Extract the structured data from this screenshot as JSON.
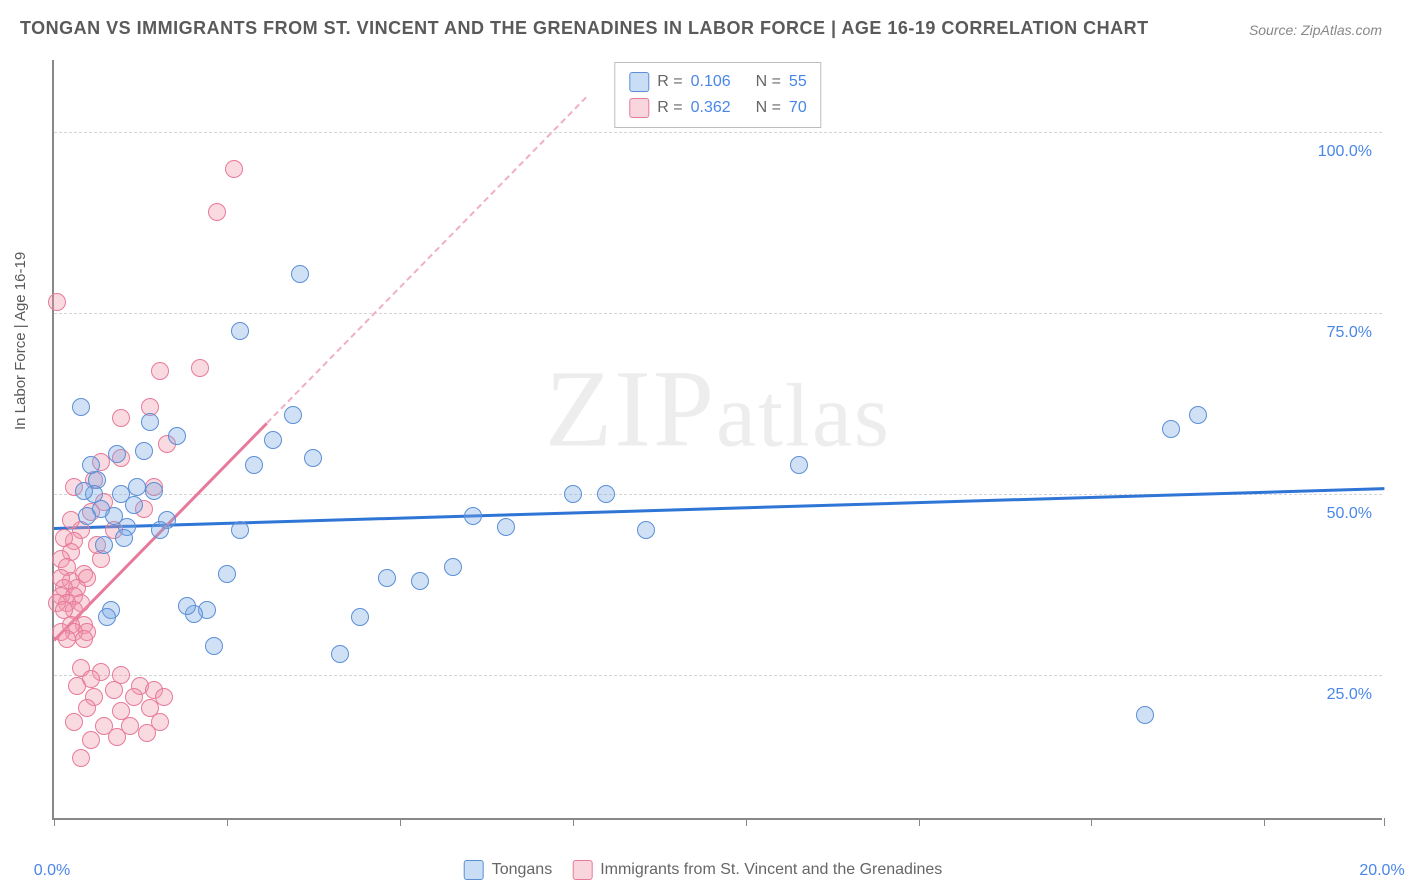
{
  "title": "TONGAN VS IMMIGRANTS FROM ST. VINCENT AND THE GRENADINES IN LABOR FORCE | AGE 16-19 CORRELATION CHART",
  "source": "Source: ZipAtlas.com",
  "watermark": "ZIPatlas",
  "chart": {
    "type": "scatter",
    "background_color": "#ffffff",
    "grid_color": "#d5d5d5",
    "axis_color": "#888888",
    "ylabel": "In Labor Force | Age 16-19",
    "ylabel_fontsize": 15,
    "xlim": [
      0,
      20
    ],
    "ylim": [
      5,
      110
    ],
    "x_tick_positions": [
      0,
      2.6,
      5.2,
      7.8,
      10.4,
      13.0,
      15.6,
      18.2,
      20
    ],
    "x_tick_labels": {
      "0": "0.0%",
      "20": "20.0%"
    },
    "y_gridlines": [
      25,
      50,
      75,
      100
    ],
    "y_tick_labels": {
      "25": "25.0%",
      "50": "50.0%",
      "75": "75.0%",
      "100": "100.0%"
    },
    "tick_label_color": "#4a86e8",
    "tick_label_fontsize": 16,
    "series": [
      {
        "name": "Tongans",
        "legend_label": "Tongans",
        "marker_fill": "rgba(120,170,230,0.35)",
        "marker_stroke": "#5b8fd6",
        "marker_size": 18,
        "r_value": "0.106",
        "n_value": "55",
        "trend": {
          "x1": 0,
          "y1": 45.5,
          "x2": 20,
          "y2": 51.0,
          "color": "#2e75d6",
          "width": 3
        },
        "points": [
          [
            3.7,
            80.5
          ],
          [
            2.8,
            72.5
          ],
          [
            16.8,
            59.0
          ],
          [
            17.2,
            61.0
          ],
          [
            16.4,
            19.5
          ],
          [
            11.2,
            54.0
          ],
          [
            8.3,
            50.0
          ],
          [
            8.9,
            45.0
          ],
          [
            7.8,
            50.0
          ],
          [
            6.8,
            45.5
          ],
          [
            6.3,
            47.0
          ],
          [
            6.0,
            40.0
          ],
          [
            5.5,
            38.0
          ],
          [
            5.0,
            38.5
          ],
          [
            4.6,
            33.0
          ],
          [
            4.3,
            28.0
          ],
          [
            3.9,
            55.0
          ],
          [
            3.6,
            61.0
          ],
          [
            3.3,
            57.5
          ],
          [
            3.0,
            54.0
          ],
          [
            2.8,
            45.0
          ],
          [
            2.6,
            39.0
          ],
          [
            2.4,
            29.0
          ],
          [
            2.3,
            34.0
          ],
          [
            2.1,
            33.5
          ],
          [
            2.0,
            34.5
          ],
          [
            1.85,
            58.0
          ],
          [
            1.7,
            46.5
          ],
          [
            1.6,
            45.0
          ],
          [
            1.5,
            50.5
          ],
          [
            1.45,
            60.0
          ],
          [
            1.35,
            56.0
          ],
          [
            1.25,
            51.0
          ],
          [
            1.2,
            48.5
          ],
          [
            1.1,
            45.5
          ],
          [
            1.05,
            44.0
          ],
          [
            1.0,
            50.0
          ],
          [
            0.95,
            55.5
          ],
          [
            0.9,
            47.0
          ],
          [
            0.85,
            34.0
          ],
          [
            0.8,
            33.0
          ],
          [
            0.75,
            43.0
          ],
          [
            0.7,
            48.0
          ],
          [
            0.65,
            52.0
          ],
          [
            0.6,
            50.0
          ],
          [
            0.55,
            54.0
          ],
          [
            0.5,
            47.0
          ],
          [
            0.45,
            50.5
          ],
          [
            0.4,
            62.0
          ]
        ]
      },
      {
        "name": "Immigrants from St. Vincent and the Grenadines",
        "legend_label": "Immigrants from St. Vincent and the Grenadines",
        "marker_fill": "rgba(240,150,170,0.35)",
        "marker_stroke": "#e77a9a",
        "marker_size": 18,
        "r_value": "0.362",
        "n_value": "70",
        "trend": {
          "x1": 0,
          "y1": 30.0,
          "x2": 3.2,
          "y2": 60.0,
          "color": "#e77a9a",
          "width": 3,
          "dash_ext": {
            "x1": 3.2,
            "y1": 60.0,
            "x2": 8.0,
            "y2": 105.0,
            "color": "#f0b0c0"
          }
        },
        "points": [
          [
            2.7,
            95.0
          ],
          [
            2.45,
            89.0
          ],
          [
            0.05,
            76.5
          ],
          [
            1.6,
            67.0
          ],
          [
            2.2,
            67.5
          ],
          [
            1.45,
            62.0
          ],
          [
            1.0,
            60.5
          ],
          [
            1.7,
            57.0
          ],
          [
            1.0,
            55.0
          ],
          [
            0.7,
            54.5
          ],
          [
            1.5,
            51.0
          ],
          [
            0.6,
            52.0
          ],
          [
            0.3,
            51.0
          ],
          [
            0.75,
            49.0
          ],
          [
            1.35,
            48.0
          ],
          [
            0.55,
            47.5
          ],
          [
            0.9,
            45.0
          ],
          [
            0.4,
            45.0
          ],
          [
            0.25,
            46.5
          ],
          [
            0.65,
            43.0
          ],
          [
            0.3,
            43.5
          ],
          [
            0.15,
            44.0
          ],
          [
            0.7,
            41.0
          ],
          [
            0.25,
            42.0
          ],
          [
            0.1,
            41.0
          ],
          [
            0.45,
            39.0
          ],
          [
            0.2,
            40.0
          ],
          [
            0.5,
            38.5
          ],
          [
            0.25,
            38.0
          ],
          [
            0.1,
            38.5
          ],
          [
            0.35,
            37.0
          ],
          [
            0.15,
            37.0
          ],
          [
            0.3,
            36.0
          ],
          [
            0.1,
            36.0
          ],
          [
            0.4,
            35.0
          ],
          [
            0.2,
            35.0
          ],
          [
            0.05,
            35.0
          ],
          [
            0.3,
            34.0
          ],
          [
            0.15,
            34.0
          ],
          [
            0.45,
            32.0
          ],
          [
            0.25,
            32.0
          ],
          [
            0.5,
            31.0
          ],
          [
            0.3,
            31.0
          ],
          [
            0.1,
            31.0
          ],
          [
            0.45,
            30.0
          ],
          [
            0.2,
            30.0
          ],
          [
            0.4,
            26.0
          ],
          [
            1.0,
            25.0
          ],
          [
            0.7,
            25.5
          ],
          [
            0.55,
            24.5
          ],
          [
            1.3,
            23.5
          ],
          [
            1.5,
            23.0
          ],
          [
            0.9,
            23.0
          ],
          [
            0.35,
            23.5
          ],
          [
            1.65,
            22.0
          ],
          [
            1.2,
            22.0
          ],
          [
            0.6,
            22.0
          ],
          [
            1.45,
            20.5
          ],
          [
            1.0,
            20.0
          ],
          [
            0.5,
            20.5
          ],
          [
            1.6,
            18.5
          ],
          [
            1.15,
            18.0
          ],
          [
            0.75,
            18.0
          ],
          [
            0.3,
            18.5
          ],
          [
            1.4,
            17.0
          ],
          [
            0.95,
            16.5
          ],
          [
            0.55,
            16.0
          ],
          [
            0.4,
            13.5
          ]
        ]
      }
    ],
    "legend_top": {
      "r_label": "R =",
      "n_label": "N ="
    },
    "bottom_legend_labels": [
      "Tongans",
      "Immigrants from St. Vincent and the Grenadines"
    ]
  }
}
